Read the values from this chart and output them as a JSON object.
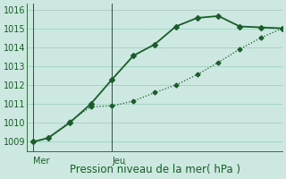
{
  "xlabel": "Pression niveau de la mer( hPa )",
  "bg_color": "#cce8e0",
  "grid_color": "#99ccbb",
  "line_color": "#1a5c2a",
  "ylim": [
    1008.5,
    1016.3
  ],
  "yticks": [
    1009,
    1010,
    1011,
    1012,
    1013,
    1014,
    1015,
    1016
  ],
  "xlim": [
    0,
    12
  ],
  "x_mer": 0.3,
  "x_jeu": 4.0,
  "line1_x": [
    0.3,
    1.0,
    2.0,
    3.0,
    4.0,
    5.0,
    6.0,
    7.0,
    8.0,
    9.0,
    10.0,
    11.0,
    12.0
  ],
  "line1_y": [
    1009.0,
    1009.2,
    1010.0,
    1011.0,
    1012.3,
    1013.55,
    1014.15,
    1015.1,
    1015.55,
    1015.65,
    1015.1,
    1015.05,
    1015.0
  ],
  "line2_x": [
    0.3,
    1.0,
    2.0,
    3.0,
    4.0,
    5.0,
    6.0,
    7.0,
    8.0,
    9.0,
    10.0,
    11.0,
    12.0
  ],
  "line2_y": [
    1009.0,
    1009.2,
    1010.05,
    1010.85,
    1010.9,
    1011.15,
    1011.6,
    1012.0,
    1012.55,
    1013.2,
    1013.9,
    1014.5,
    1015.0
  ],
  "marker1": "D",
  "marker2": "D",
  "marker_size1": 3.0,
  "marker_size2": 2.5,
  "linewidth1": 1.3,
  "linewidth2": 0.9,
  "xlabel_fontsize": 8.5,
  "tick_fontsize": 7,
  "day_label_fontsize": 7
}
